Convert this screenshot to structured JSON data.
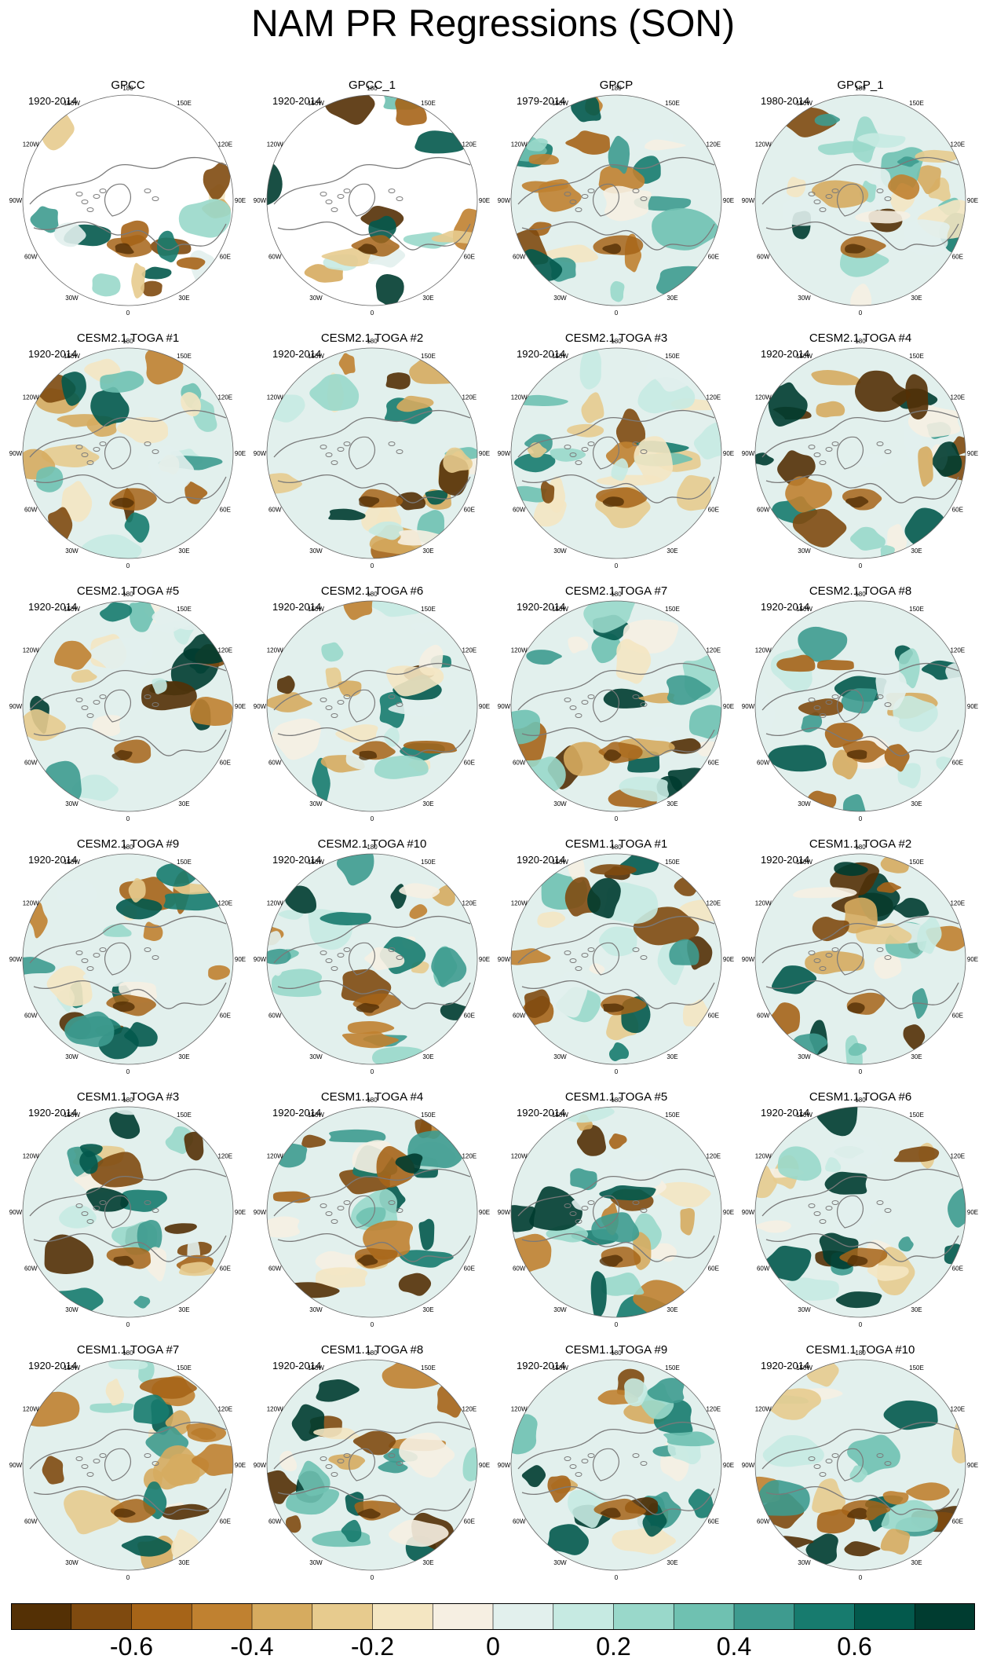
{
  "title": "NAM PR Regressions (SON)",
  "panels": [
    {
      "title": "GPCC",
      "years": "1920-2014",
      "has_missing": true
    },
    {
      "title": "GPCC_1",
      "years": "1920-2014",
      "has_missing": true
    },
    {
      "title": "GPCP",
      "years": "1979-2014",
      "has_missing": false
    },
    {
      "title": "GPCP_1",
      "years": "1980-2014",
      "has_missing": false
    },
    {
      "title": "CESM2.1 TOGA #1",
      "years": "1920-2014",
      "has_missing": false
    },
    {
      "title": "CESM2.1 TOGA #2",
      "years": "1920-2014",
      "has_missing": false
    },
    {
      "title": "CESM2.1 TOGA #3",
      "years": "1920-2014",
      "has_missing": false
    },
    {
      "title": "CESM2.1 TOGA #4",
      "years": "1920-2014",
      "has_missing": false
    },
    {
      "title": "CESM2.1 TOGA #5",
      "years": "1920-2014",
      "has_missing": false
    },
    {
      "title": "CESM2.1 TOGA #6",
      "years": "1920-2014",
      "has_missing": false
    },
    {
      "title": "CESM2.1 TOGA #7",
      "years": "1920-2014",
      "has_missing": false
    },
    {
      "title": "CESM2.1 TOGA #8",
      "years": "1920-2014",
      "has_missing": false
    },
    {
      "title": "CESM2.1 TOGA #9",
      "years": "1920-2014",
      "has_missing": false
    },
    {
      "title": "CESM2.1 TOGA #10",
      "years": "1920-2014",
      "has_missing": false
    },
    {
      "title": "CESM1.1 TOGA #1",
      "years": "1920-2014",
      "has_missing": false
    },
    {
      "title": "CESM1.1 TOGA #2",
      "years": "1920-2014",
      "has_missing": false
    },
    {
      "title": "CESM1.1 TOGA #3",
      "years": "1920-2014",
      "has_missing": false
    },
    {
      "title": "CESM1.1 TOGA #4",
      "years": "1920-2014",
      "has_missing": false
    },
    {
      "title": "CESM1.1 TOGA #5",
      "years": "1920-2014",
      "has_missing": false
    },
    {
      "title": "CESM1.1 TOGA #6",
      "years": "1920-2014",
      "has_missing": false
    },
    {
      "title": "CESM1.1 TOGA #7",
      "years": "1920-2014",
      "has_missing": false
    },
    {
      "title": "CESM1.1 TOGA #8",
      "years": "1920-2014",
      "has_missing": false
    },
    {
      "title": "CESM1.1 TOGA #9",
      "years": "1920-2014",
      "has_missing": false
    },
    {
      "title": "CESM1.1 TOGA #10",
      "years": "1920-2014",
      "has_missing": false
    }
  ],
  "longitude_labels": [
    "180",
    "150E",
    "120E",
    "90E",
    "60E",
    "30E",
    "0",
    "30W",
    "60W",
    "90W",
    "120W",
    "150W"
  ],
  "colorbar": {
    "colors": [
      "#543005",
      "#7f4a0f",
      "#a66418",
      "#c08130",
      "#d6ab5f",
      "#e7cb8e",
      "#f4e6c2",
      "#f6efe2",
      "#e2f0ed",
      "#c6eae2",
      "#99d8ca",
      "#6fc1b1",
      "#3e9b8f",
      "#177b6e",
      "#03594c",
      "#003c30"
    ],
    "tick_labels": [
      "-0.6",
      "-0.4",
      "-0.2",
      "0",
      "0.2",
      "0.4",
      "0.6"
    ],
    "tick_values": [
      -0.6,
      -0.4,
      -0.2,
      0,
      0.2,
      0.4,
      0.6
    ],
    "range": [
      -0.8,
      0.8
    ]
  },
  "coastline_color": "#7a7a7a"
}
